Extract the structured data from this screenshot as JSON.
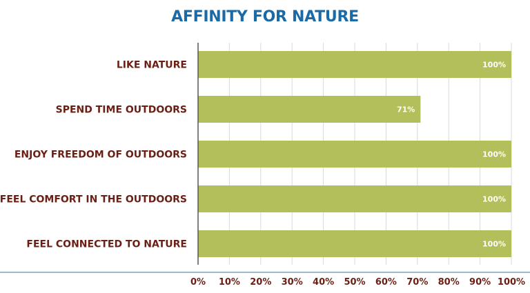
{
  "chart_data": {
    "type": "bar",
    "orientation": "horizontal",
    "title": "AFFINITY FOR NATURE",
    "categories": [
      "LIKE NATURE",
      "SPEND TIME OUTDOORS",
      "ENJOY FREEDOM OF OUTDOORS",
      "FEEL COMFORT IN THE OUTDOORS",
      "FEEL CONNECTED TO NATURE"
    ],
    "values": [
      100,
      71,
      100,
      100,
      100
    ],
    "data_labels": [
      "100%",
      "71%",
      "100%",
      "100%",
      "100%"
    ],
    "xlim": [
      0,
      100
    ],
    "xticks": [
      "0%",
      "10%",
      "20%",
      "30%",
      "40%",
      "50%",
      "60%",
      "70%",
      "80%",
      "90%",
      "100%"
    ],
    "xlabel": "",
    "ylabel": "",
    "grid": "vertical",
    "legend": "none",
    "colors": {
      "bar": "#b3bf5a",
      "title": "#1a6aa8",
      "labels": "#6b1f14",
      "data_label": "#ffffff",
      "grid": "#d9d9d9",
      "axis": "#555555",
      "baseline": "#3c6e9c"
    }
  }
}
